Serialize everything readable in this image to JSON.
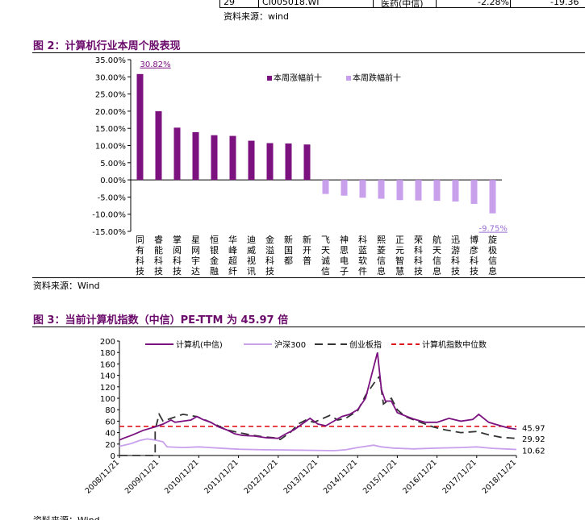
{
  "top_table": {
    "row_id": "29",
    "code": "CI005018.WI",
    "name": "医药(中信)",
    "pct1": "-2.28%",
    "pct2": "-19.36"
  },
  "source_top": "资料来源：wind",
  "figure2": {
    "title": "图 2：计算机行业本周个股表现",
    "source": "资料来源：Wind",
    "chart_data": {
      "type": "bar",
      "legend_position": "top-right",
      "ylim": [
        -15,
        35
      ],
      "yticks": [
        "35.00%",
        "30.00%",
        "25.00%",
        "20.00%",
        "15.00%",
        "10.00%",
        "5.00%",
        "0.00%",
        "-5.00%",
        "-10.00%",
        "-15.00%"
      ],
      "series": [
        {
          "name": "本周涨幅前十",
          "color": "#7b1280",
          "categories": [
            "同有科技",
            "睿能科技",
            "掌阅科技",
            "星网宇达",
            "恒银金融",
            "华峰超纤",
            "迪威视讯",
            "金溢科技",
            "新国都",
            "新开普"
          ],
          "values": [
            30.82,
            20.0,
            15.2,
            13.9,
            13.0,
            12.8,
            11.4,
            10.7,
            10.6,
            10.3
          ]
        },
        {
          "name": "本周跌幅前十",
          "color": "#c9a0ec",
          "categories": [
            "飞天诚信",
            "神思电子",
            "科蓝软件",
            "熙菱信息",
            "正元智慧",
            "荣科科技",
            "航天信息",
            "迅游科技",
            "博彦科技",
            "旋极信息"
          ],
          "values": [
            -4.1,
            -4.6,
            -5.2,
            -5.5,
            -5.9,
            -6.0,
            -6.1,
            -6.3,
            -7.0,
            -9.75
          ]
        }
      ],
      "annotations": [
        {
          "text": "30.82%"
        },
        {
          "text": "-9.75%"
        }
      ]
    }
  },
  "figure3": {
    "title": "图 3：当前计算机指数（中信）PE-TTM 为 45.97 倍",
    "source": "资料来源：Wind",
    "chart_data": {
      "type": "line",
      "legend_position": "top",
      "ylim": [
        0,
        200
      ],
      "yticks": [
        0,
        20,
        40,
        60,
        80,
        100,
        120,
        140,
        160,
        180,
        200
      ],
      "xticks": [
        "2008/11/21",
        "2009/11/21",
        "2010/11/21",
        "2011/11/21",
        "2012/11/21",
        "2013/11/21",
        "2014/11/21",
        "2015/11/21",
        "2016/11/21",
        "2017/11/21",
        "2018/11/21"
      ],
      "series": [
        {
          "name": "计算机(中信)",
          "color": "#7b1280",
          "end_label": "45.97",
          "points": [
            [
              2008.9,
              27
            ],
            [
              2009.0,
              30
            ],
            [
              2009.2,
              35
            ],
            [
              2009.5,
              44
            ],
            [
              2009.8,
              50
            ],
            [
              2010.0,
              55
            ],
            [
              2010.2,
              62
            ],
            [
              2010.3,
              58
            ],
            [
              2010.5,
              60
            ],
            [
              2010.7,
              62
            ],
            [
              2010.85,
              68
            ],
            [
              2011.0,
              63
            ],
            [
              2011.2,
              58
            ],
            [
              2011.4,
              50
            ],
            [
              2011.6,
              45
            ],
            [
              2011.8,
              38
            ],
            [
              2012.0,
              35
            ],
            [
              2012.3,
              34
            ],
            [
              2012.6,
              31
            ],
            [
              2012.9,
              30
            ],
            [
              2013.1,
              38
            ],
            [
              2013.3,
              45
            ],
            [
              2013.5,
              55
            ],
            [
              2013.7,
              65
            ],
            [
              2013.9,
              55
            ],
            [
              2014.1,
              52
            ],
            [
              2014.3,
              60
            ],
            [
              2014.5,
              68
            ],
            [
              2014.7,
              72
            ],
            [
              2014.9,
              80
            ],
            [
              2015.1,
              100
            ],
            [
              2015.25,
              140
            ],
            [
              2015.4,
              180
            ],
            [
              2015.5,
              115
            ],
            [
              2015.6,
              95
            ],
            [
              2015.75,
              95
            ],
            [
              2015.9,
              75
            ],
            [
              2016.0,
              72
            ],
            [
              2016.3,
              64
            ],
            [
              2016.6,
              58
            ],
            [
              2016.9,
              58
            ],
            [
              2017.2,
              65
            ],
            [
              2017.5,
              60
            ],
            [
              2017.8,
              63
            ],
            [
              2017.95,
              72
            ],
            [
              2018.2,
              58
            ],
            [
              2018.5,
              52
            ],
            [
              2018.7,
              48
            ],
            [
              2018.9,
              45.97
            ]
          ]
        },
        {
          "name": "沪深300",
          "color": "#c9a0ec",
          "end_label": "10.62",
          "points": [
            [
              2008.9,
              16
            ],
            [
              2009.2,
              21
            ],
            [
              2009.4,
              26
            ],
            [
              2009.6,
              29
            ],
            [
              2009.8,
              27
            ],
            [
              2010.0,
              24
            ],
            [
              2010.1,
              15
            ],
            [
              2010.5,
              14
            ],
            [
              2010.9,
              15
            ],
            [
              2011.4,
              13
            ],
            [
              2011.9,
              11
            ],
            [
              2012.5,
              10
            ],
            [
              2012.9,
              9.8
            ],
            [
              2013.3,
              9.5
            ],
            [
              2013.8,
              9
            ],
            [
              2014.3,
              8.5
            ],
            [
              2014.6,
              10
            ],
            [
              2014.9,
              14
            ],
            [
              2015.3,
              18
            ],
            [
              2015.5,
              15
            ],
            [
              2015.8,
              13
            ],
            [
              2016.3,
              11.5
            ],
            [
              2016.9,
              13
            ],
            [
              2017.5,
              14
            ],
            [
              2017.9,
              15
            ],
            [
              2018.3,
              12.5
            ],
            [
              2018.9,
              10.62
            ]
          ]
        },
        {
          "name": "创业板指",
          "color": "#333333",
          "dash": "10,6",
          "end_label": "29.92",
          "points": [
            [
              2008.9,
              0
            ],
            [
              2009.75,
              0
            ],
            [
              2009.8,
              0
            ],
            [
              2009.8,
              45
            ],
            [
              2009.9,
              72
            ],
            [
              2010.0,
              60
            ],
            [
              2010.2,
              65
            ],
            [
              2010.5,
              72
            ],
            [
              2010.85,
              68
            ],
            [
              2011.0,
              64
            ],
            [
              2011.3,
              55
            ],
            [
              2011.6,
              45
            ],
            [
              2011.9,
              40
            ],
            [
              2012.2,
              36
            ],
            [
              2012.5,
              33
            ],
            [
              2012.8,
              31
            ],
            [
              2012.95,
              28
            ],
            [
              2013.2,
              40
            ],
            [
              2013.4,
              55
            ],
            [
              2013.6,
              62
            ],
            [
              2013.8,
              58
            ],
            [
              2014.0,
              64
            ],
            [
              2014.2,
              70
            ],
            [
              2014.4,
              62
            ],
            [
              2014.6,
              65
            ],
            [
              2014.9,
              78
            ],
            [
              2015.1,
              105
            ],
            [
              2015.35,
              130
            ],
            [
              2015.45,
              138
            ],
            [
              2015.55,
              90
            ],
            [
              2015.75,
              100
            ],
            [
              2015.9,
              80
            ],
            [
              2016.1,
              68
            ],
            [
              2016.4,
              60
            ],
            [
              2016.8,
              50
            ],
            [
              2017.1,
              45
            ],
            [
              2017.5,
              40
            ],
            [
              2017.9,
              42
            ],
            [
              2018.2,
              36
            ],
            [
              2018.5,
              32
            ],
            [
              2018.9,
              29.92
            ]
          ]
        },
        {
          "name": "计算机指数中位数",
          "color": "#e0161c",
          "dash": "6,4",
          "end_label": "",
          "points": [
            [
              2008.9,
              51
            ],
            [
              2018.9,
              51
            ]
          ]
        }
      ]
    }
  }
}
